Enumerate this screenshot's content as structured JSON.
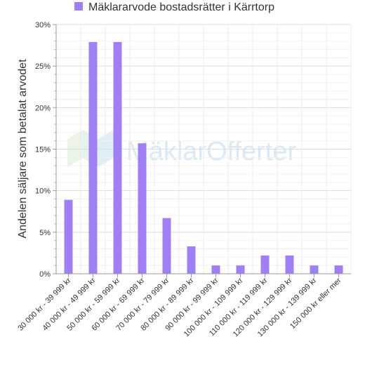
{
  "chart_data": {
    "type": "bar",
    "title": "",
    "legend": {
      "placement": "top-center",
      "entries": [
        "Mäklararvode bostadsrätter i Kärrtorp"
      ]
    },
    "ylabel": "Andelen säljare som betalat arvodet",
    "xlabel": "",
    "ylim": [
      0,
      30
    ],
    "yticks": [
      0,
      5,
      10,
      15,
      20,
      25,
      30
    ],
    "ytick_labels": [
      "0%",
      "5%",
      "10%",
      "15%",
      "20%",
      "25%",
      "30%"
    ],
    "grid": true,
    "categories": [
      "30 000 kr - 39 999 kr",
      "40 000 kr - 49 999 kr",
      "50 000 kr - 59 999 kr",
      "60 000 kr - 69 999 kr",
      "70 000 kr - 79 999 kr",
      "80 000 kr - 89 999 kr",
      "90 000 kr - 99 999 kr",
      "100 000 kr - 109 999 kr",
      "110 000 kr - 119 999 kr",
      "120 000 kr - 129 999 kr",
      "130 000 kr - 139 999 kr",
      "150 000 kr eller mer"
    ],
    "series": [
      {
        "name": "Mäklararvode bostadsrätter i Kärrtorp",
        "color": "#a07ff3",
        "values": [
          8.9,
          27.9,
          27.9,
          15.7,
          6.7,
          3.3,
          1.0,
          1.0,
          2.2,
          2.2,
          1.0,
          1.0
        ]
      }
    ]
  },
  "watermark": {
    "text": "MäklarOfferter"
  }
}
